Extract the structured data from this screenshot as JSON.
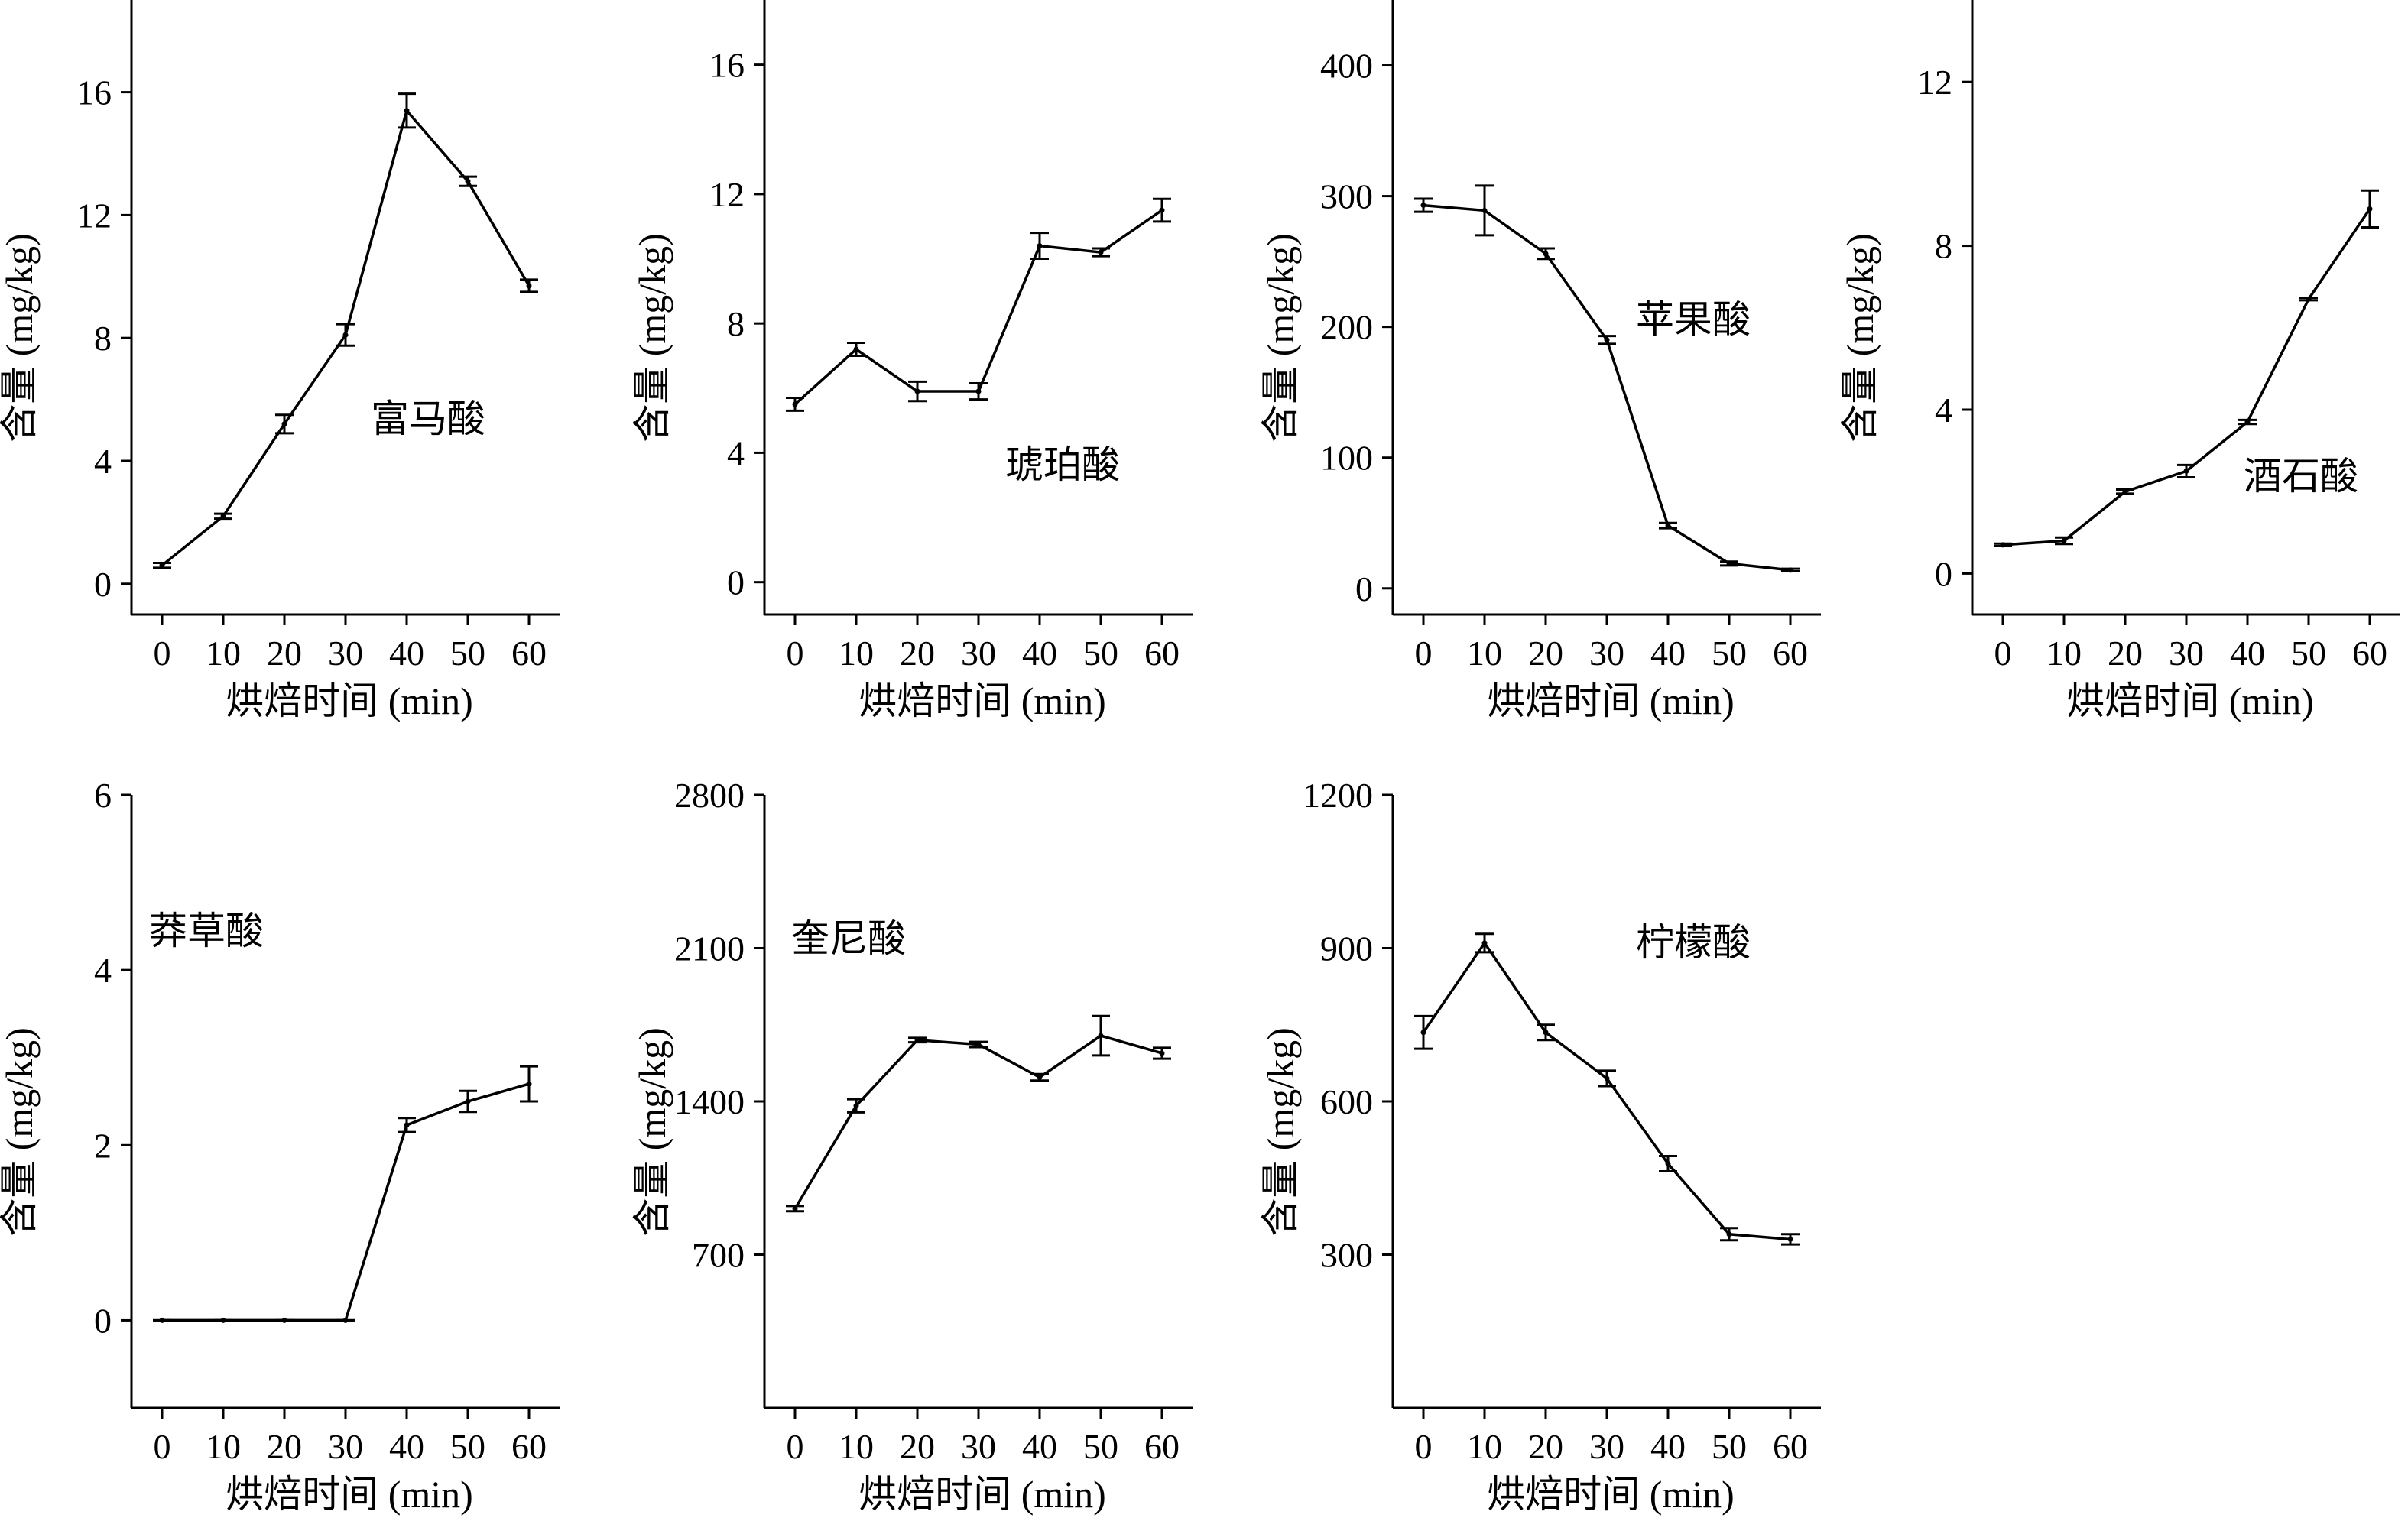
{
  "chart_data": [
    {
      "type": "line",
      "name": "富马酸",
      "x": [
        0,
        10,
        20,
        30,
        40,
        50,
        60
      ],
      "values": [
        0.6,
        2.2,
        5.2,
        8.1,
        15.4,
        13.1,
        9.7
      ],
      "errors": [
        0.08,
        0.08,
        0.3,
        0.35,
        0.55,
        0.15,
        0.2
      ],
      "xticks": [
        "0",
        "10",
        "20",
        "30",
        "40",
        "50",
        "60"
      ],
      "yticks": [
        0,
        4,
        8,
        12,
        16
      ],
      "ytick_labels": [
        "0",
        "4",
        "8",
        "12",
        "16"
      ],
      "ylim": [
        -1,
        19
      ],
      "xlabel": "烘焙时间 (min)",
      "ylabel": "含量 (mg/kg)"
    },
    {
      "type": "line",
      "name": "琥珀酸",
      "x": [
        0,
        10,
        20,
        30,
        40,
        50,
        60
      ],
      "values": [
        5.5,
        7.2,
        5.9,
        5.9,
        10.4,
        10.2,
        11.5
      ],
      "errors": [
        0.2,
        0.2,
        0.3,
        0.25,
        0.4,
        0.12,
        0.35
      ],
      "xticks": [
        "0",
        "10",
        "20",
        "30",
        "40",
        "50",
        "60"
      ],
      "yticks": [
        0,
        4,
        8,
        12,
        16
      ],
      "ytick_labels": [
        "0",
        "4",
        "8",
        "12",
        "16"
      ],
      "ylim": [
        -1,
        18
      ],
      "xlabel": "烘焙时间 (min)",
      "ylabel": "含量 (mg/kg)"
    },
    {
      "type": "line",
      "name": "苹果酸",
      "x": [
        0,
        10,
        20,
        30,
        40,
        50,
        60
      ],
      "values": [
        293,
        289,
        256,
        190,
        48,
        19,
        14
      ],
      "errors": [
        5,
        19,
        4,
        3,
        2,
        1.5,
        1
      ],
      "xticks": [
        "0",
        "10",
        "20",
        "30",
        "40",
        "50",
        "60"
      ],
      "yticks": [
        0,
        100,
        200,
        300,
        400
      ],
      "ytick_labels": [
        "0",
        "100",
        "200",
        "300",
        "400"
      ],
      "ylim": [
        -20,
        450
      ],
      "xlabel": "烘焙时间 (min)",
      "ylabel": "含量 (mg/kg)"
    },
    {
      "type": "line",
      "name": "酒石酸",
      "x": [
        0,
        10,
        20,
        30,
        40,
        50,
        60
      ],
      "values": [
        0.7,
        0.8,
        2.0,
        2.5,
        3.7,
        6.7,
        8.9
      ],
      "errors": [
        0.03,
        0.08,
        0.05,
        0.15,
        0.05,
        0.03,
        0.45
      ],
      "xticks": [
        "0",
        "10",
        "20",
        "30",
        "40",
        "50",
        "60"
      ],
      "yticks": [
        0,
        4,
        8,
        12
      ],
      "ytick_labels": [
        "0",
        "4",
        "8",
        "12"
      ],
      "ylim": [
        -1,
        14
      ],
      "xlabel": "烘焙时间 (min)",
      "ylabel": "含量 (mg/kg)"
    },
    {
      "type": "line",
      "name": "莽草酸",
      "x": [
        0,
        10,
        20,
        30,
        40,
        50,
        60
      ],
      "values": [
        0,
        0,
        0,
        0,
        2.23,
        2.5,
        2.7
      ],
      "errors": [
        0,
        0,
        0,
        0,
        0.08,
        0.12,
        0.2
      ],
      "xticks": [
        "0",
        "10",
        "20",
        "30",
        "40",
        "50",
        "60"
      ],
      "yticks": [
        0,
        2,
        4,
        6
      ],
      "ytick_labels": [
        "0",
        "2",
        "4",
        "6"
      ],
      "ylim": [
        -1,
        6
      ],
      "xlabel": "烘焙时间 (min)",
      "ylabel": "含量 (mg/kg)"
    },
    {
      "type": "line",
      "name": "奎尼酸",
      "x": [
        0,
        10,
        20,
        30,
        40,
        50,
        60
      ],
      "values": [
        910,
        1380,
        1680,
        1660,
        1510,
        1700,
        1620
      ],
      "errors": [
        12,
        30,
        10,
        12,
        15,
        90,
        25
      ],
      "xticks": [
        "0",
        "10",
        "20",
        "30",
        "40",
        "50",
        "60"
      ],
      "yticks": [
        700,
        1400,
        2100,
        2800
      ],
      "ytick_labels": [
        "700",
        "1400",
        "2100",
        "2800"
      ],
      "ylim": [
        0,
        2800
      ],
      "xlabel": "烘焙时间 (min)",
      "ylabel": "含量 (mg/kg)"
    },
    {
      "type": "line",
      "name": "柠檬酸",
      "x": [
        0,
        10,
        20,
        30,
        40,
        50,
        60
      ],
      "values": [
        735,
        910,
        735,
        645,
        478,
        340,
        330
      ],
      "errors": [
        32,
        18,
        15,
        15,
        15,
        12,
        10
      ],
      "xticks": [
        "0",
        "10",
        "20",
        "30",
        "40",
        "50",
        "60"
      ],
      "yticks": [
        300,
        600,
        900,
        1200
      ],
      "ytick_labels": [
        "300",
        "600",
        "900",
        "1200"
      ],
      "ylim": [
        0,
        1200
      ],
      "xlabel": "烘焙时间 (min)",
      "ylabel": "含量 (mg/kg)"
    }
  ]
}
